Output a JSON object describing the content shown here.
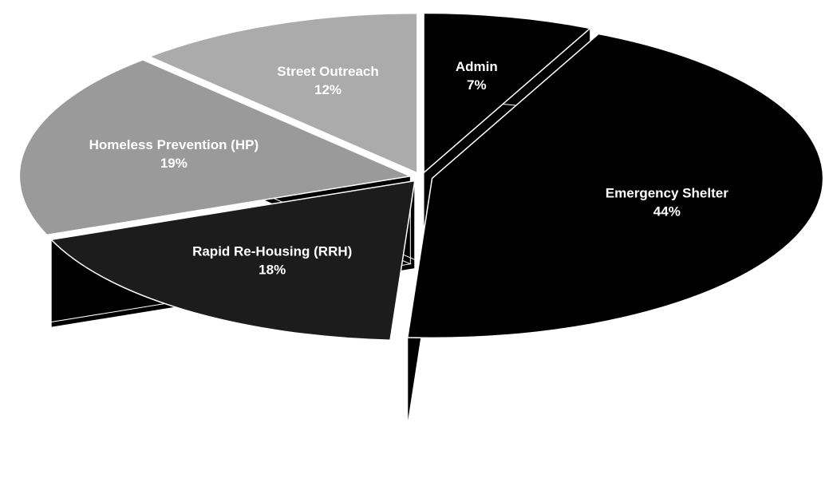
{
  "chart_data": {
    "type": "pie",
    "categories": [
      "Admin",
      "Emergency Shelter",
      "Rapid Re-Housing (RRH)",
      "Homeless Prevention (HP)",
      "Street Outreach"
    ],
    "values": [
      7,
      44,
      18,
      19,
      12
    ],
    "value_labels": [
      "7%",
      "44%",
      "18%",
      "19%",
      "12%"
    ],
    "colors": [
      "#000000",
      "#000000",
      "#1c1c1c",
      "#9a9a9a",
      "#ababab"
    ]
  }
}
